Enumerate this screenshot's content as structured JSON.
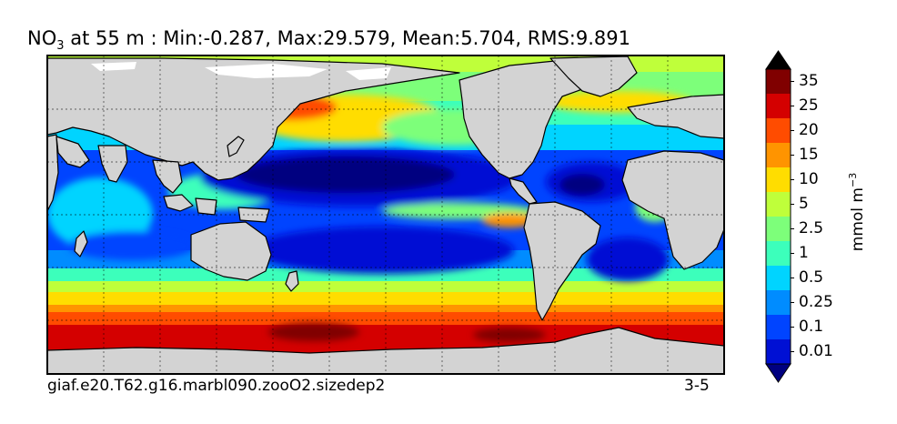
{
  "title": {
    "species": "NO",
    "species_sub": "3",
    "rest": " at 55 m : Min:-0.287, Max:29.579, Mean:5.704, RMS:9.891"
  },
  "footer": {
    "case_name": "giaf.e20.T62.g16.marbl090.zooO2.sizedep2",
    "years": "3-5"
  },
  "colorbar": {
    "units_base": "mmol m",
    "units_exp": "−3",
    "labels": [
      "35",
      "25",
      "20",
      "15",
      "10",
      "5",
      "2.5",
      "1",
      "0.5",
      "0.25",
      "0.1",
      "0.01"
    ],
    "colors_top_to_bottom": [
      "#800000",
      "#d40000",
      "#ff4c00",
      "#ff9400",
      "#ffdd00",
      "#bfff3a",
      "#7dff7a",
      "#3cffbb",
      "#00d4ff",
      "#008cff",
      "#0044ff",
      "#0010d4"
    ],
    "under_color": "#000080",
    "over_color": "#000000"
  },
  "map": {
    "land_color": "#d3d3d3",
    "grid": "dashed"
  }
}
